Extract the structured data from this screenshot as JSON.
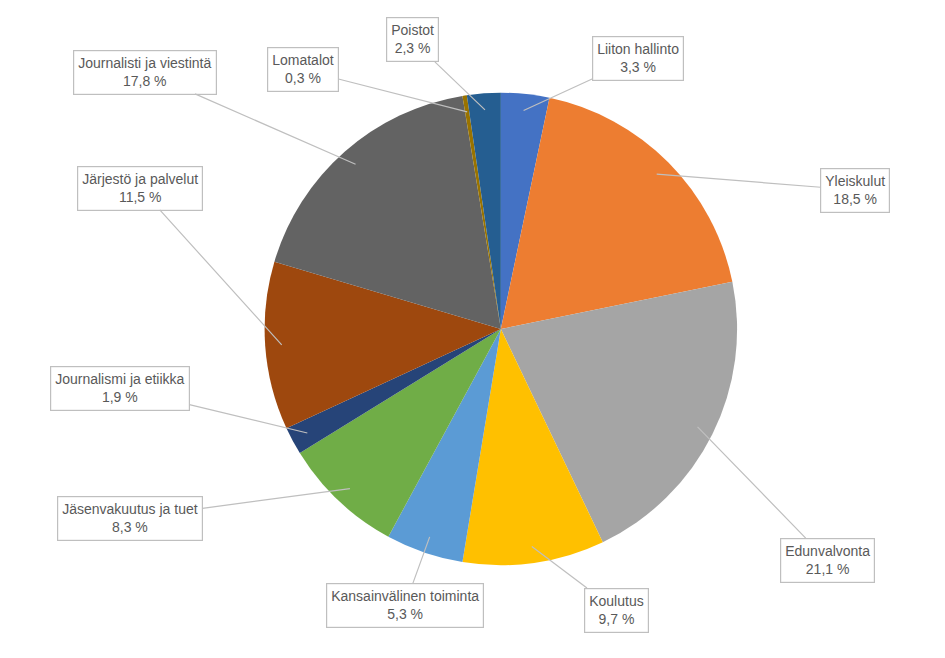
{
  "chart_data": {
    "type": "pie",
    "categories": [
      "Liiton hallinto",
      "Yleiskulut",
      "Edunvalvonta",
      "Koulutus",
      "Kansainvälinen toiminta",
      "Jäsenvakuutus ja tuet",
      "Journalismi ja etiikka",
      "Järjestö ja palvelut",
      "Journalisti ja viestintä",
      "Lomatalot",
      "Poistot"
    ],
    "values": [
      3.3,
      18.5,
      21.1,
      9.7,
      5.3,
      8.3,
      1.9,
      11.5,
      17.8,
      0.3,
      2.3
    ],
    "value_labels": [
      "3,3 %",
      "18,5 %",
      "21,1 %",
      "9,7 %",
      "5,3 %",
      "8,3 %",
      "1,9 %",
      "11,5 %",
      "17,8 %",
      "0,3 %",
      "2,3 %"
    ],
    "colors": [
      "#4472c4",
      "#ed7d31",
      "#a5a5a5",
      "#ffc000",
      "#5b9bd5",
      "#70ad47",
      "#264478",
      "#9e480e",
      "#636363",
      "#997300",
      "#255e91"
    ],
    "data_labels": true
  }
}
